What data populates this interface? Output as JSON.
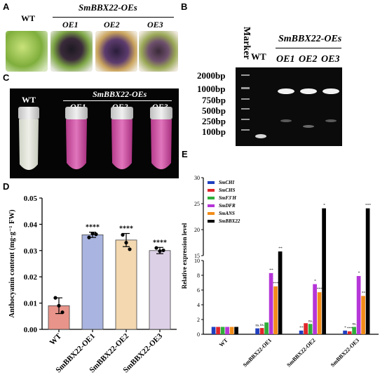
{
  "panels": {
    "A": "A",
    "B": "B",
    "C": "C",
    "D": "D",
    "E": "E"
  },
  "panel_a": {
    "wt": "WT",
    "group": "SmBBX22-OEs",
    "lines": [
      "OE1",
      "OE2",
      "OE3"
    ]
  },
  "panel_b": {
    "marker": "Marker",
    "wt": "WT",
    "group": "SmBBX22-OEs",
    "lines": [
      "OE1",
      "OE2",
      "OE3"
    ],
    "ladder": [
      "2000bp",
      "1000bp",
      "750bp",
      "500bp",
      "250bp",
      "100bp"
    ]
  },
  "panel_c": {
    "wt": "WT",
    "group": "SmBBX22-OEs",
    "lines": [
      "OE1",
      "OE2",
      "OE3"
    ]
  },
  "chart_data": [
    {
      "type": "bar",
      "panel": "D",
      "categories": [
        "WT",
        "SmBBX22-OE1",
        "SmBBX22-OE2",
        "SmBBX22-OE3"
      ],
      "values": [
        0.009,
        0.036,
        0.034,
        0.03
      ],
      "errors": [
        0.003,
        0.001,
        0.0025,
        0.0012
      ],
      "points": [
        [
          0.012,
          0.009,
          0.0065
        ],
        [
          0.035,
          0.0365,
          0.0362
        ],
        [
          0.036,
          0.033,
          0.0305
        ],
        [
          0.031,
          0.0298,
          0.0301
        ]
      ],
      "significance": [
        "",
        "****",
        "****",
        "****"
      ],
      "colors": [
        "#e8948a",
        "#a9b4e0",
        "#f3d8b0",
        "#dcd0e6"
      ],
      "ylabel": "Anthocyanin content (mg·g⁻¹ FW)",
      "ylim": [
        0,
        0.05
      ],
      "yticks": [
        "0.00",
        "0.01",
        "0.02",
        "0.03",
        "0.04",
        "0.05"
      ]
    },
    {
      "type": "bar",
      "panel": "E",
      "categories": [
        "WT",
        "SmBBX22-OE1",
        "SmBBX22-OE2",
        "SmBBX22-OE3"
      ],
      "series": [
        {
          "name": "SmCHI",
          "color": "#1f3fbf",
          "values": [
            1.0,
            0.8,
            0.5,
            0.5
          ],
          "sig": [
            "",
            "ns.",
            "**",
            "*"
          ]
        },
        {
          "name": "SmCHS",
          "color": "#e0262a",
          "values": [
            1.0,
            0.85,
            1.5,
            0.4
          ],
          "sig": [
            "",
            "ns.",
            "",
            "***"
          ]
        },
        {
          "name": "SmF3'H",
          "color": "#2fae3a",
          "values": [
            1.0,
            1.6,
            1.4,
            1.0
          ],
          "sig": [
            "",
            "",
            "ns.",
            "ns."
          ]
        },
        {
          "name": "SmDFR",
          "color": "#b535d8",
          "values": [
            1.0,
            8.3,
            6.8,
            7.9
          ],
          "sig": [
            "",
            "**",
            "*",
            "*"
          ]
        },
        {
          "name": "SmANS",
          "color": "#f28c1a",
          "values": [
            1.0,
            6.5,
            5.7,
            5.2
          ],
          "sig": [
            "",
            "***",
            "***",
            "**"
          ]
        },
        {
          "name": "SmBBX22",
          "color": "#000000",
          "values": [
            1.0,
            15.8,
            24.1,
            24.1
          ],
          "sig": [
            "",
            "**",
            "*",
            "***"
          ]
        }
      ],
      "ylabel": "Relative expression level",
      "yticks_lower": [
        "0",
        "2",
        "4",
        "6",
        "8",
        "10"
      ],
      "yticks_upper": [
        "15",
        "20",
        "25",
        "30"
      ],
      "ylim": [
        0,
        30
      ]
    }
  ]
}
